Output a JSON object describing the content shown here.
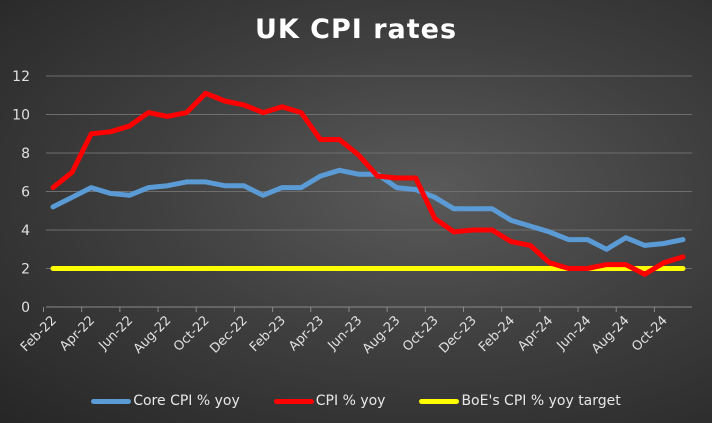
{
  "chart_data": {
    "type": "line",
    "title": "UK CPI rates",
    "xlabel": "",
    "ylabel": "",
    "ylim": [
      0,
      12
    ],
    "yticks": [
      "0",
      "2",
      "4",
      "6",
      "8",
      "10",
      "12"
    ],
    "x": [
      "Feb-22",
      "Mar-22",
      "Apr-22",
      "May-22",
      "Jun-22",
      "Jul-22",
      "Aug-22",
      "Sep-22",
      "Oct-22",
      "Nov-22",
      "Dec-22",
      "Jan-23",
      "Feb-23",
      "Mar-23",
      "Apr-23",
      "May-23",
      "Jun-23",
      "Jul-23",
      "Aug-23",
      "Sep-23",
      "Oct-23",
      "Nov-23",
      "Dec-23",
      "Jan-24",
      "Feb-24",
      "Mar-24",
      "Apr-24",
      "May-24",
      "Jun-24",
      "Jul-24",
      "Aug-24",
      "Sep-24",
      "Oct-24",
      "Nov-24"
    ],
    "xtick_labels": [
      "Feb-22",
      "Apr-22",
      "Jun-22",
      "Aug-22",
      "Oct-22",
      "Dec-22",
      "Feb-23",
      "Apr-23",
      "Jun-23",
      "Aug-23",
      "Oct-23",
      "Dec-23",
      "Feb-24",
      "Apr-24",
      "Jun-24",
      "Aug-24",
      "Oct-24"
    ],
    "grid": true,
    "legend_position": "bottom",
    "series": [
      {
        "name": "Core CPI % yoy",
        "color": "#5b9bd5",
        "values": [
          5.2,
          5.7,
          6.2,
          5.9,
          5.8,
          6.2,
          6.3,
          6.5,
          6.5,
          6.3,
          6.3,
          5.8,
          6.2,
          6.2,
          6.8,
          7.1,
          6.9,
          6.9,
          6.2,
          6.1,
          5.7,
          5.1,
          5.1,
          5.1,
          4.5,
          4.2,
          3.9,
          3.5,
          3.5,
          3.0,
          3.6,
          3.2,
          3.3,
          3.5
        ]
      },
      {
        "name": "CPI % yoy",
        "color": "#ff0000",
        "values": [
          6.2,
          7.0,
          9.0,
          9.1,
          9.4,
          10.1,
          9.9,
          10.1,
          11.1,
          10.7,
          10.5,
          10.1,
          10.4,
          10.1,
          8.7,
          8.7,
          7.9,
          6.8,
          6.7,
          6.7,
          4.6,
          3.9,
          4.0,
          4.0,
          3.4,
          3.2,
          2.3,
          2.0,
          2.0,
          2.2,
          2.2,
          1.7,
          2.3,
          2.6
        ]
      },
      {
        "name": "BoE's CPI % yoy target",
        "color": "#ffff00",
        "values": [
          2,
          2,
          2,
          2,
          2,
          2,
          2,
          2,
          2,
          2,
          2,
          2,
          2,
          2,
          2,
          2,
          2,
          2,
          2,
          2,
          2,
          2,
          2,
          2,
          2,
          2,
          2,
          2,
          2,
          2,
          2,
          2,
          2,
          2
        ]
      }
    ]
  }
}
